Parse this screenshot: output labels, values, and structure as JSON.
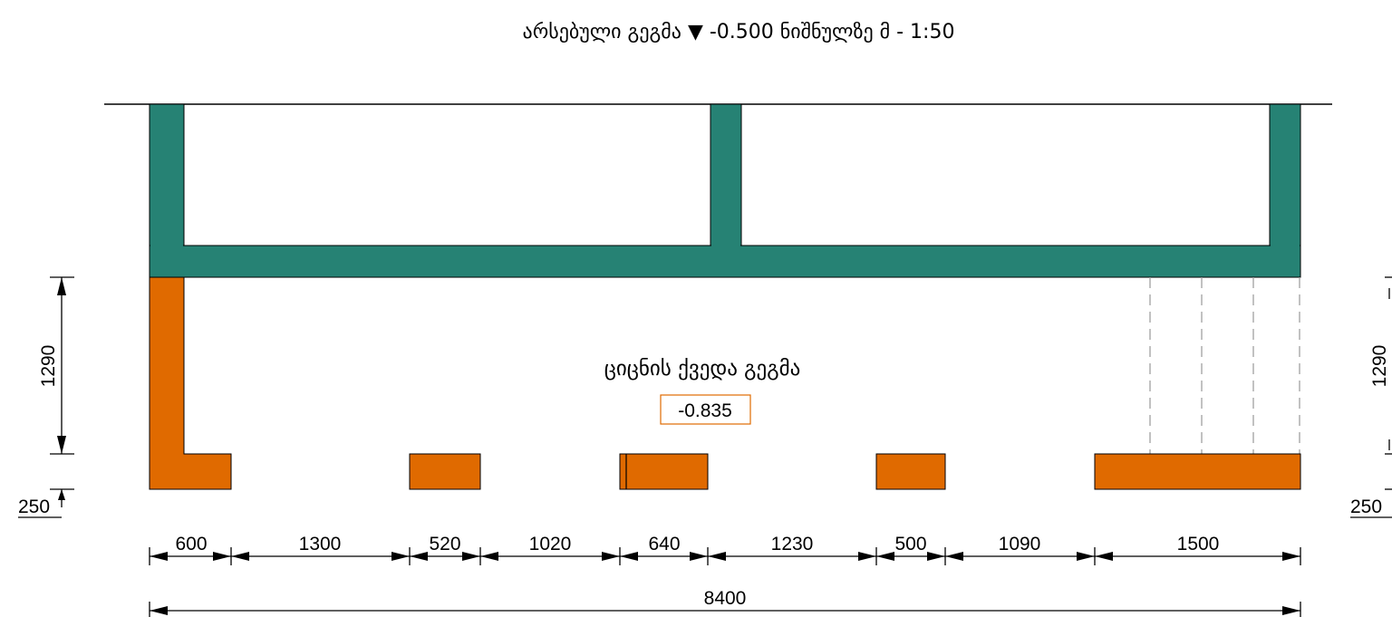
{
  "title": {
    "text": "არსებული გეგმა ▼ -0.500 ნიშნულზე მ - 1:50"
  },
  "plan_label": "ციცნის ქვედა გეგმა",
  "elevation_tag": "-0.835",
  "colors": {
    "existing_wall": "#268274",
    "new_foundation": "#E06A00",
    "lines": "#000000",
    "hidden_lines": "#A0A0A0",
    "tag_border": "#E06A00"
  },
  "dimensions": {
    "bottom_segments": [
      "600",
      "1300",
      "520",
      "1020",
      "640",
      "1230",
      "500",
      "1090",
      "1500"
    ],
    "overall": "8400",
    "left_height": "1290",
    "left_base": "250",
    "right_height": "1290",
    "right_base": "250"
  }
}
